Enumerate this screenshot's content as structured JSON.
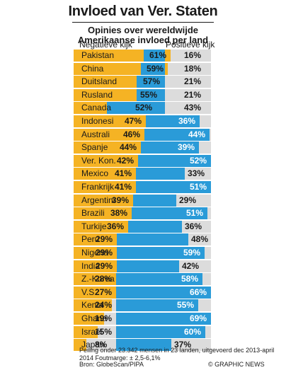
{
  "header": {
    "title": "Invloed van Ver. Staten",
    "subtitle_line1": "Opinies over wereldwijde",
    "subtitle_line2": "Amerikaanse invloed per land",
    "neg_label": "Negatieve kijk",
    "pos_label": "Positieve kijk"
  },
  "colors": {
    "negative": "#f5b324",
    "positive": "#2a9bd8",
    "row_bg": "#dcdcdc"
  },
  "chart_data": {
    "type": "bar",
    "categories": [
      "Pakistan",
      "China",
      "Duitsland",
      "Rusland",
      "Canada",
      "Indonesi",
      "Australi",
      "Spanje",
      "Ver. Kon.",
      "Mexico",
      "Frankrijk",
      "Argentini",
      "Brazili",
      "Turkije",
      "Peru",
      "Nigeria",
      "India",
      "Z.-Korea",
      "V.S.",
      "Kenia",
      "Ghana",
      "Israël",
      "Japan"
    ],
    "series": [
      {
        "name": "Negatieve kijk",
        "values": [
          61,
          59,
          57,
          55,
          52,
          47,
          46,
          44,
          42,
          41,
          41,
          39,
          38,
          36,
          29,
          29,
          29,
          28,
          27,
          24,
          19,
          15,
          8
        ]
      },
      {
        "name": "Positieve kijk",
        "values": [
          16,
          18,
          21,
          21,
          43,
          36,
          44,
          39,
          52,
          33,
          51,
          29,
          51,
          36,
          48,
          59,
          42,
          58,
          66,
          55,
          69,
          60,
          37
        ]
      }
    ],
    "value_labels": {
      "negative": [
        "61%",
        "59%",
        "57%",
        "55%",
        "52%",
        "47%",
        "46%",
        "44%",
        "42%",
        "41%",
        "41%",
        "39%",
        "38%",
        "36%",
        "29%",
        "29%",
        "29%",
        "28%",
        "27%",
        "24%",
        "19%",
        "15%",
        "8%"
      ],
      "positive": [
        "16%",
        "18%",
        "21%",
        "21%",
        "43%",
        "36%",
        "44%",
        "39%",
        "52%",
        "33%",
        "51%",
        "29%",
        "51%",
        "36%",
        "48%",
        "59%",
        "42%",
        "58%",
        "66%",
        "55%",
        "69%",
        "60%",
        "37%"
      ]
    }
  },
  "footer": {
    "note": "Peiling onder 23.342 mensen in 23 landen, uitgevoerd dec 2013-april 2014 Foutmarge: ± 2,5-6,1%",
    "source": "Bron: GlobeScan/PIPA",
    "credit": "© GRAPHIC NEWS"
  }
}
